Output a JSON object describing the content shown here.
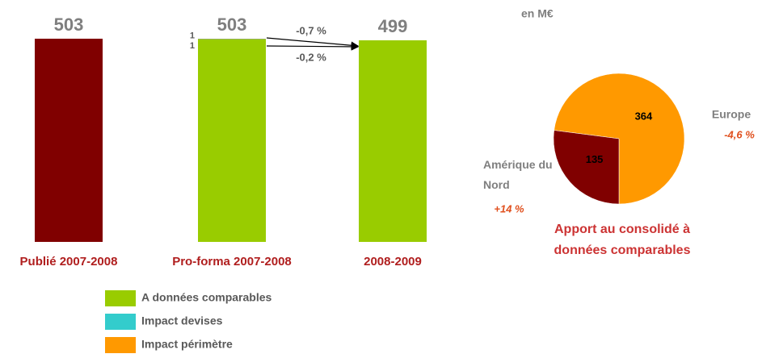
{
  "chart_data": [
    {
      "type": "bar",
      "categories": [
        "Publié 2007-2008",
        "Pro-forma 2007-2008",
        "2008-2009"
      ],
      "series": [
        {
          "color": "#800000",
          "values": [
            503,
            null,
            null
          ]
        },
        {
          "name": "A données comparables",
          "color": "#99cc00",
          "values": [
            null,
            501,
            499
          ]
        },
        {
          "name": "Impact devises",
          "color": "#33cccc",
          "values": [
            null,
            1,
            null
          ]
        },
        {
          "name": "Impact périmètre",
          "color": "#ff9900",
          "values": [
            null,
            1,
            null
          ]
        }
      ],
      "totals": [
        503,
        503,
        499
      ],
      "annotations": [
        "-0,7 %",
        "-0,2 %"
      ]
    },
    {
      "type": "pie",
      "subtitle": "en M€",
      "title": "Apport au consolidé à données comparables",
      "categories": [
        "Europe",
        "Amérique du Nord"
      ],
      "values": [
        364,
        135
      ],
      "colors": [
        "#ff9900",
        "#800000"
      ],
      "changes": [
        "-4,6 %",
        "+14 %"
      ]
    }
  ]
}
